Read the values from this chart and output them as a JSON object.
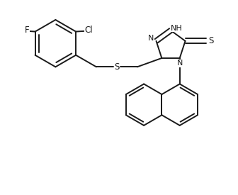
{
  "background_color": "#ffffff",
  "line_color": "#1a1a1a",
  "line_width": 1.4,
  "font_size": 8.5,
  "figsize": [
    3.36,
    2.75
  ],
  "dpi": 100,
  "xlim": [
    0,
    10
  ],
  "ylim": [
    0,
    8.2
  ]
}
